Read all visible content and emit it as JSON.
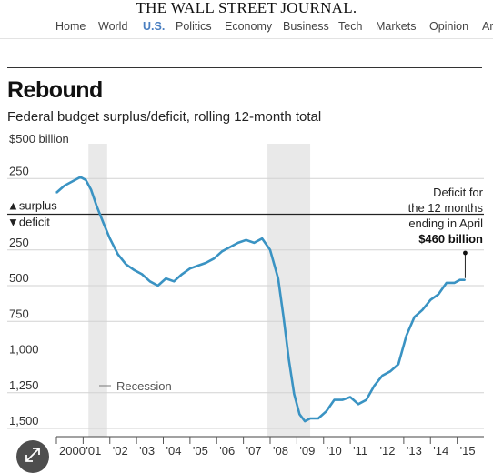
{
  "masthead": "THE WALL STREET JOURNAL.",
  "nav": {
    "items": [
      "Home",
      "World",
      "U.S.",
      "Politics",
      "Economy",
      "Business",
      "Tech",
      "Markets",
      "Opinion",
      "Ar"
    ],
    "active": "U.S."
  },
  "chart_data": {
    "type": "line",
    "title": "Rebound",
    "subtitle": "Federal budget surplus/deficit, rolling 12-month total",
    "y_unit_label": "$500 billion",
    "y_tick_labels": [
      "$500 billion",
      "250",
      "250",
      "500",
      "750",
      "1,000",
      "1,250",
      "1,500"
    ],
    "y_ticks": [
      500,
      250,
      -250,
      -500,
      -750,
      -1000,
      -1250,
      -1500
    ],
    "ylim": [
      -1500,
      500
    ],
    "zero_labels": [
      "▲surplus",
      "▼deficit"
    ],
    "x_tick_labels": [
      "2000",
      "'01",
      "'02",
      "'03",
      "'04",
      "'05",
      "'06",
      "'07",
      "'08",
      "'09",
      "'10",
      "'11",
      "'12",
      "'13",
      "'14",
      "'15"
    ],
    "xlim": [
      2000,
      2016
    ],
    "recession_label": "Recession",
    "recessions": [
      [
        2001.2,
        2001.9
      ],
      [
        2007.9,
        2009.5
      ]
    ],
    "annotation": {
      "lines": [
        "Deficit for",
        "the 12 months",
        "ending in April"
      ],
      "value_label": "$460 billion",
      "x": 2015.3,
      "y": -460
    },
    "series": [
      {
        "color": "#3a93c3",
        "x": [
          2000.0,
          2000.3,
          2000.6,
          2000.9,
          2001.1,
          2001.3,
          2001.5,
          2001.8,
          2002.0,
          2002.3,
          2002.6,
          2002.9,
          2003.2,
          2003.5,
          2003.8,
          2004.1,
          2004.4,
          2004.7,
          2005.0,
          2005.3,
          2005.6,
          2005.9,
          2006.2,
          2006.5,
          2006.8,
          2007.1,
          2007.4,
          2007.7,
          2008.0,
          2008.3,
          2008.5,
          2008.7,
          2008.9,
          2009.1,
          2009.3,
          2009.5,
          2009.8,
          2010.1,
          2010.4,
          2010.7,
          2011.0,
          2011.3,
          2011.6,
          2011.9,
          2012.2,
          2012.5,
          2012.8,
          2013.1,
          2013.4,
          2013.7,
          2014.0,
          2014.3,
          2014.6,
          2014.9,
          2015.1,
          2015.3
        ],
        "y": [
          150,
          200,
          230,
          260,
          240,
          170,
          60,
          -80,
          -170,
          -280,
          -350,
          -390,
          -420,
          -470,
          -500,
          -450,
          -470,
          -420,
          -380,
          -360,
          -340,
          -310,
          -260,
          -230,
          -200,
          -180,
          -200,
          -170,
          -250,
          -450,
          -720,
          -1020,
          -1260,
          -1400,
          -1450,
          -1430,
          -1430,
          -1380,
          -1300,
          -1300,
          -1280,
          -1330,
          -1300,
          -1200,
          -1130,
          -1100,
          -1050,
          -850,
          -720,
          -670,
          -600,
          -560,
          -480,
          -480,
          -460,
          -460
        ]
      }
    ]
  }
}
